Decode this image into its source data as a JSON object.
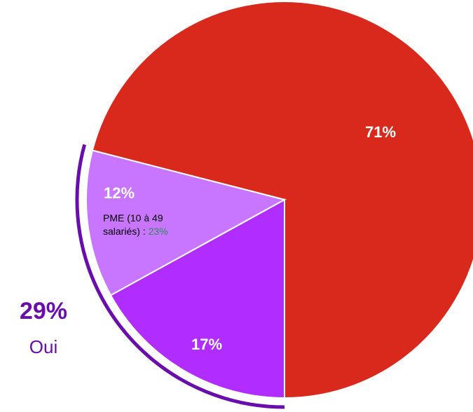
{
  "chart_data": {
    "type": "pie",
    "categories": [
      null,
      null,
      null
    ],
    "values": [
      71,
      17,
      12
    ],
    "value_labels": [
      "71%",
      "17%",
      "12%"
    ],
    "colors": [
      "#d9291c",
      "#b02cff",
      "#c876ff"
    ],
    "group": {
      "value": 29,
      "label": "29%",
      "name": "Oui",
      "color": "#6a0dad"
    },
    "note": {
      "text": "PME (10 à 49 salariés) :",
      "value": 23,
      "label": "23%",
      "color": "#2e8b57"
    }
  }
}
